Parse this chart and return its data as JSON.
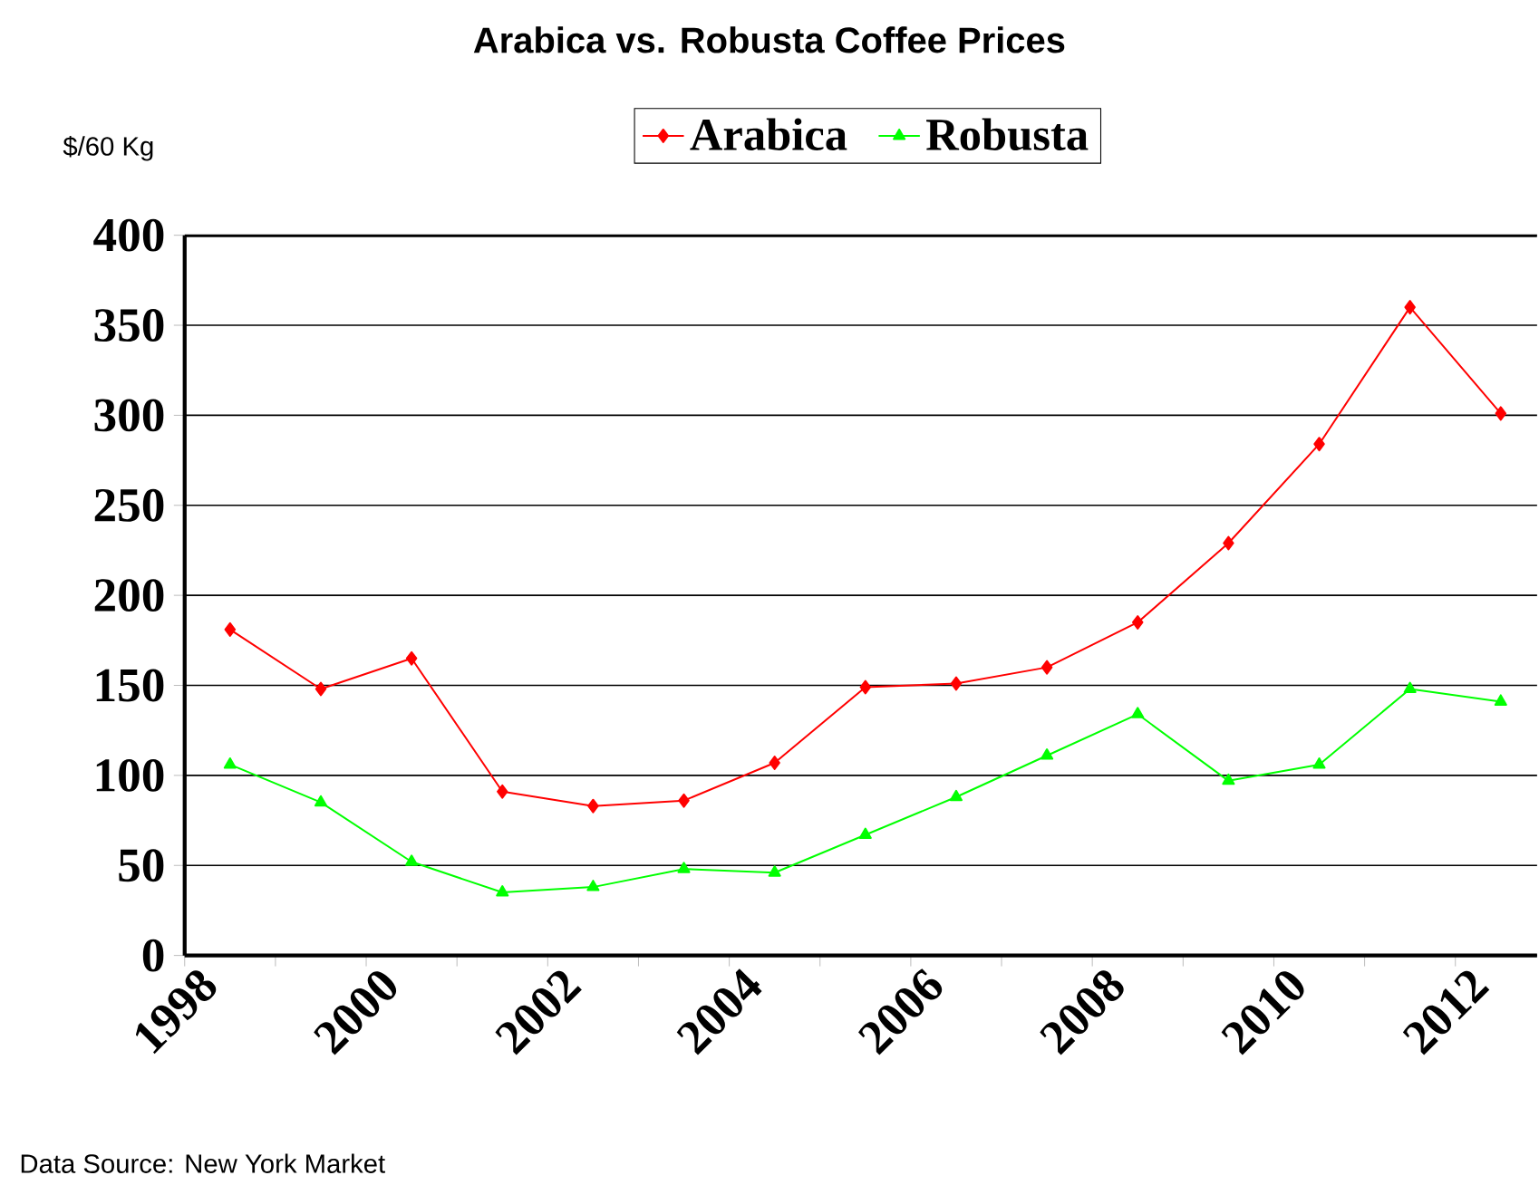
{
  "chart_data": {
    "type": "line",
    "title": "Arabica vs. Robusta Coffee Prices",
    "ylabel": "$/60 Kg",
    "x": [
      1998.5,
      1999.5,
      2000.5,
      2001.5,
      2002.5,
      2003.5,
      2004.5,
      2005.5,
      2006.5,
      2007.5,
      2008.5,
      2009.5,
      2010.5,
      2011.5,
      2012.5
    ],
    "series": [
      {
        "name": "Arabica",
        "color": "#ff0000",
        "marker": "diamond",
        "values": [
          181,
          148,
          165,
          91,
          83,
          86,
          107,
          149,
          151,
          160,
          185,
          229,
          284,
          360,
          301
        ]
      },
      {
        "name": "Robusta",
        "color": "#00ff00",
        "marker": "triangle",
        "values": [
          106,
          85,
          52,
          35,
          38,
          48,
          46,
          67,
          88,
          111,
          134,
          97,
          106,
          148,
          141
        ]
      }
    ],
    "xlim": [
      1998,
      2012.9
    ],
    "xticks": [
      1998,
      {
        "value": 1999,
        "label": null
      },
      2000,
      {
        "value": 2001,
        "label": null
      },
      2002,
      {
        "value": 2003,
        "label": null
      },
      2004,
      {
        "value": 2005,
        "label": null
      },
      2006,
      {
        "value": 2007,
        "label": null
      },
      2008,
      {
        "value": 2009,
        "label": null
      },
      2010,
      {
        "value": 2011,
        "label": null
      },
      2012
    ],
    "ylim": [
      0,
      400
    ],
    "yticks": [
      0,
      50,
      100,
      150,
      200,
      250,
      300,
      350,
      400
    ],
    "grid": "y",
    "legend": "top",
    "line_style": "solid",
    "annotations": [
      "Data Source: New York Market"
    ]
  }
}
